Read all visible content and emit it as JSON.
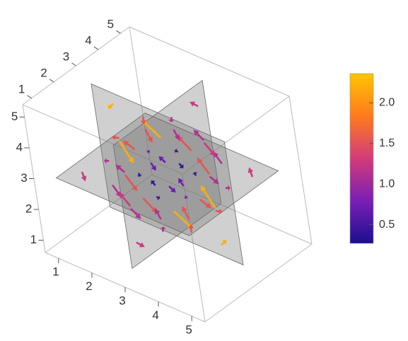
{
  "chart_data": {
    "type": "vector3d",
    "xlim": [
      0.6,
      5.4
    ],
    "ylim": [
      0.6,
      5.4
    ],
    "zlim": [
      0.6,
      5.4
    ],
    "xticks": [
      1,
      2,
      3,
      4,
      5
    ],
    "yticks": [
      1,
      2,
      3,
      4,
      5
    ],
    "zticks": [
      1,
      2,
      3,
      4,
      5
    ],
    "slices": [
      3,
      3,
      3
    ],
    "vectors": [
      [
        1.5,
        1.5,
        3,
        0.9,
        -0.9,
        0
      ],
      [
        1.5,
        2.5,
        3,
        0.3,
        -0.9,
        0.6
      ],
      [
        1.5,
        3.5,
        3,
        -0.3,
        -0.9,
        1.2
      ],
      [
        1.5,
        4.5,
        3,
        -0.9,
        -0.9,
        1.8
      ],
      [
        2.5,
        1.5,
        3,
        0.9,
        -0.3,
        -0.6
      ],
      [
        2.5,
        2.5,
        3,
        0.3,
        -0.3,
        0
      ],
      [
        2.5,
        3.5,
        3,
        -0.3,
        -0.3,
        0.6
      ],
      [
        2.5,
        4.5,
        3,
        -0.9,
        -0.3,
        1.2
      ],
      [
        3.5,
        1.5,
        3,
        0.9,
        0.3,
        -1.2
      ],
      [
        3.5,
        2.5,
        3,
        0.3,
        0.3,
        -0.6
      ],
      [
        3.5,
        3.5,
        3,
        -0.3,
        0.3,
        0
      ],
      [
        3.5,
        4.5,
        3,
        -0.9,
        0.3,
        0.6
      ],
      [
        4.5,
        1.5,
        3,
        0.9,
        0.9,
        -1.8
      ],
      [
        4.5,
        2.5,
        3,
        0.3,
        0.9,
        -1.2
      ],
      [
        4.5,
        3.5,
        3,
        -0.3,
        0.9,
        -0.6
      ],
      [
        4.5,
        4.5,
        3,
        -0.9,
        0.9,
        0
      ],
      [
        3,
        1.5,
        1.5,
        0,
        0.9,
        -0.9
      ],
      [
        3,
        1.5,
        2.5,
        0.6,
        0.3,
        -0.9
      ],
      [
        3,
        1.5,
        3.5,
        1.2,
        -0.3,
        -0.9
      ],
      [
        3,
        1.5,
        4.5,
        1.8,
        -0.9,
        -0.9
      ],
      [
        3,
        2.5,
        1.5,
        -0.6,
        0.9,
        -0.3
      ],
      [
        3,
        2.5,
        2.5,
        0,
        0.3,
        -0.3
      ],
      [
        3,
        2.5,
        3.5,
        0.6,
        -0.3,
        -0.3
      ],
      [
        3,
        2.5,
        4.5,
        1.2,
        -0.9,
        -0.3
      ],
      [
        3,
        3.5,
        1.5,
        -1.2,
        0.9,
        0.3
      ],
      [
        3,
        3.5,
        2.5,
        -0.6,
        0.3,
        0.3
      ],
      [
        3,
        3.5,
        3.5,
        0,
        -0.3,
        0.3
      ],
      [
        3,
        3.5,
        4.5,
        0.6,
        -0.9,
        0.3
      ],
      [
        3,
        4.5,
        1.5,
        -1.8,
        0.9,
        0.9
      ],
      [
        3,
        4.5,
        2.5,
        -1.2,
        0.3,
        0.9
      ],
      [
        3,
        4.5,
        3.5,
        -0.6,
        -0.3,
        0.9
      ],
      [
        3,
        4.5,
        4.5,
        0,
        -0.9,
        0.9
      ],
      [
        1.5,
        3,
        1.5,
        -0.9,
        0,
        0.9
      ],
      [
        1.5,
        3,
        2.5,
        -0.3,
        -0.6,
        0.9
      ],
      [
        1.5,
        3,
        3.5,
        0.3,
        -1.2,
        0.9
      ],
      [
        1.5,
        3,
        4.5,
        0.9,
        -1.8,
        0.9
      ],
      [
        2.5,
        3,
        1.5,
        -0.9,
        0.6,
        0.3
      ],
      [
        2.5,
        3,
        2.5,
        -0.3,
        0,
        0.3
      ],
      [
        2.5,
        3,
        3.5,
        0.3,
        -0.6,
        0.3
      ],
      [
        2.5,
        3,
        4.5,
        0.9,
        -1.2,
        0.3
      ],
      [
        3.5,
        3,
        1.5,
        -0.9,
        1.2,
        -0.3
      ],
      [
        3.5,
        3,
        2.5,
        -0.3,
        0.6,
        -0.3
      ],
      [
        3.5,
        3,
        3.5,
        0.3,
        0,
        -0.3
      ],
      [
        3.5,
        3,
        4.5,
        0.9,
        -0.6,
        -0.3
      ],
      [
        4.5,
        3,
        1.5,
        -0.9,
        1.8,
        -0.9
      ],
      [
        4.5,
        3,
        2.5,
        -0.3,
        1.2,
        -0.9
      ],
      [
        4.5,
        3,
        3.5,
        0.3,
        0.6,
        -0.9
      ],
      [
        4.5,
        3,
        4.5,
        0.9,
        0,
        -0.9
      ]
    ],
    "colorbar": {
      "lim": [
        0.27,
        2.36
      ],
      "ticks": [
        0.5,
        {
          "value": 1,
          "label": "1.0"
        },
        1.5,
        {
          "value": 2,
          "label": "2.0"
        }
      ],
      "colors": [
        "#1a0f8f",
        "#7a1fb5",
        "#d23c7a",
        "#ff7a1e",
        "#ffc400"
      ]
    }
  }
}
